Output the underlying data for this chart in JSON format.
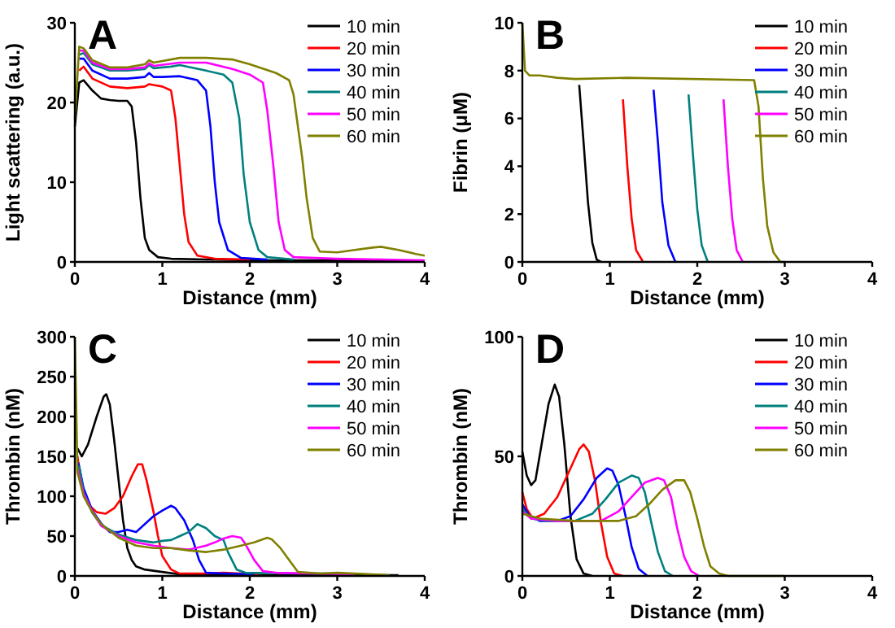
{
  "chart_data": [
    {
      "type": "line",
      "title": "A",
      "xlabel": "Distance (mm)",
      "ylabel": "Light scattering (a.u.)",
      "xlim": [
        0,
        4
      ],
      "xticks": [
        0,
        1,
        2,
        3,
        4
      ],
      "ylim": [
        0,
        30
      ],
      "yticks": [
        0,
        10,
        20,
        30
      ],
      "legend": "top right",
      "grid": false,
      "series": [
        {
          "name": "10 min",
          "color": "#000000",
          "x": [
            0,
            0.05,
            0.1,
            0.2,
            0.3,
            0.4,
            0.5,
            0.6,
            0.65,
            0.7,
            0.75,
            0.8,
            0.85,
            0.95,
            1.1,
            1.5,
            2,
            3,
            4
          ],
          "values": [
            17,
            22.5,
            22.8,
            21.5,
            20.5,
            20.3,
            20.2,
            20.2,
            19.5,
            15,
            8,
            3,
            1.5,
            0.6,
            0.4,
            0.3,
            0.2,
            0.2,
            0.1
          ]
        },
        {
          "name": "20 min",
          "color": "#ff0000",
          "x": [
            0.05,
            0.1,
            0.2,
            0.4,
            0.6,
            0.8,
            0.85,
            0.9,
            1.0,
            1.1,
            1.15,
            1.2,
            1.25,
            1.3,
            1.4,
            1.6,
            2
          ],
          "values": [
            24,
            24.5,
            23,
            22,
            21.8,
            22,
            22.3,
            22.2,
            22,
            21.5,
            18,
            12,
            6,
            2.5,
            0.8,
            0.4,
            0.3
          ]
        },
        {
          "name": "30 min",
          "color": "#0000ff",
          "x": [
            0.05,
            0.1,
            0.2,
            0.4,
            0.6,
            0.8,
            0.85,
            0.9,
            1.0,
            1.2,
            1.4,
            1.5,
            1.55,
            1.6,
            1.65,
            1.75,
            1.9,
            2.2
          ],
          "values": [
            25.5,
            25.5,
            24,
            23,
            23,
            23.2,
            23.7,
            23.2,
            23.2,
            23.3,
            22.8,
            21.5,
            17,
            10,
            5,
            1.5,
            0.5,
            0.3
          ]
        },
        {
          "name": "40 min",
          "color": "#008080",
          "x": [
            0.05,
            0.1,
            0.2,
            0.4,
            0.6,
            0.8,
            0.85,
            0.9,
            1.1,
            1.2,
            1.5,
            1.7,
            1.8,
            1.88,
            1.93,
            2.0,
            2.1,
            2.2,
            2.5
          ],
          "values": [
            26,
            26.2,
            24.8,
            24,
            24,
            24.2,
            24.7,
            24.3,
            24.5,
            24.7,
            24,
            23.5,
            22.5,
            18,
            11,
            5,
            1.5,
            0.6,
            0.3
          ]
        },
        {
          "name": "50 min",
          "color": "#ff00ff",
          "x": [
            0.05,
            0.1,
            0.2,
            0.4,
            0.6,
            0.8,
            0.85,
            0.9,
            1.2,
            1.5,
            1.8,
            2.0,
            2.15,
            2.2,
            2.27,
            2.33,
            2.4,
            2.5,
            3,
            4
          ],
          "values": [
            26.5,
            26.5,
            25,
            24.2,
            24.2,
            24.4,
            24.9,
            24.6,
            25,
            25,
            24.2,
            23.5,
            22.5,
            19,
            12,
            5,
            1.5,
            0.6,
            0.4,
            0.2
          ]
        },
        {
          "name": "60 min",
          "color": "#808000",
          "x": [
            0,
            0.05,
            0.1,
            0.2,
            0.4,
            0.6,
            0.8,
            0.85,
            0.9,
            1.2,
            1.5,
            1.8,
            2.0,
            2.3,
            2.45,
            2.5,
            2.6,
            2.65,
            2.72,
            2.8,
            3.0,
            3.2,
            3.4,
            3.5,
            3.7,
            3.9,
            4.0
          ],
          "values": [
            18,
            27,
            26.8,
            25.3,
            24.4,
            24.4,
            24.8,
            25.3,
            25,
            25.6,
            25.6,
            25.4,
            24.8,
            23.7,
            22.8,
            21,
            13,
            8,
            3,
            1.3,
            1.2,
            1.5,
            1.8,
            1.9,
            1.5,
            1.0,
            0.8
          ]
        }
      ]
    },
    {
      "type": "line",
      "title": "B",
      "xlabel": "Distance (mm)",
      "ylabel": "Fibrin (μM)",
      "xlim": [
        0,
        4
      ],
      "xticks": [
        0,
        1,
        2,
        3,
        4
      ],
      "ylim": [
        0,
        10
      ],
      "yticks": [
        0,
        2,
        4,
        6,
        8,
        10
      ],
      "legend": "top right",
      "grid": false,
      "series": [
        {
          "name": "10 min",
          "color": "#000000",
          "x": [
            0.65,
            0.7,
            0.75,
            0.8,
            0.85,
            0.9
          ],
          "values": [
            7.4,
            5,
            2.5,
            0.8,
            0.1,
            0
          ]
        },
        {
          "name": "20 min",
          "color": "#ff0000",
          "x": [
            1.15,
            1.2,
            1.25,
            1.3,
            1.38
          ],
          "values": [
            6.8,
            4,
            1.8,
            0.5,
            0
          ]
        },
        {
          "name": "30 min",
          "color": "#0000ff",
          "x": [
            1.5,
            1.55,
            1.6,
            1.67,
            1.75
          ],
          "values": [
            7.2,
            5,
            2.5,
            0.7,
            0
          ]
        },
        {
          "name": "40 min",
          "color": "#008080",
          "x": [
            1.9,
            1.95,
            2.0,
            2.05,
            2.12
          ],
          "values": [
            7.0,
            4.5,
            2.2,
            0.7,
            0
          ]
        },
        {
          "name": "50 min",
          "color": "#ff00ff",
          "x": [
            2.3,
            2.35,
            2.4,
            2.45,
            2.52
          ],
          "values": [
            6.8,
            4,
            1.8,
            0.5,
            0
          ]
        },
        {
          "name": "60 min",
          "color": "#808000",
          "x": [
            0,
            0.03,
            0.08,
            0.2,
            0.4,
            0.6,
            1.2,
            2.65,
            2.7,
            2.75,
            2.8,
            2.87,
            2.95,
            3
          ],
          "values": [
            10,
            8,
            7.8,
            7.8,
            7.7,
            7.65,
            7.7,
            7.6,
            6.5,
            3.5,
            1.5,
            0.4,
            0,
            0
          ]
        }
      ]
    },
    {
      "type": "line",
      "title": "C",
      "xlabel": "Distance (mm)",
      "ylabel": "Thrombin (nM)",
      "xlim": [
        0,
        4
      ],
      "xticks": [
        0,
        1,
        2,
        3,
        4
      ],
      "ylim": [
        0,
        300
      ],
      "yticks": [
        0,
        50,
        100,
        150,
        200,
        250,
        300
      ],
      "legend": "top right",
      "grid": false,
      "series": [
        {
          "name": "10 min",
          "color": "#000000",
          "x": [
            0.03,
            0.08,
            0.15,
            0.25,
            0.33,
            0.36,
            0.4,
            0.45,
            0.5,
            0.55,
            0.6,
            0.65,
            0.7,
            0.8,
            1.0,
            1.2,
            1.5,
            2,
            3,
            3.7
          ],
          "values": [
            160,
            150,
            165,
            200,
            225,
            228,
            215,
            170,
            120,
            70,
            35,
            20,
            12,
            8,
            5,
            2,
            1,
            1,
            1,
            1
          ]
        },
        {
          "name": "20 min",
          "color": "#ff0000",
          "x": [
            0.03,
            0.08,
            0.15,
            0.25,
            0.35,
            0.45,
            0.55,
            0.65,
            0.72,
            0.77,
            0.82,
            0.9,
            0.95,
            1.0,
            1.1,
            1.2,
            1.5,
            1.7,
            2.1
          ],
          "values": [
            150,
            110,
            90,
            80,
            78,
            85,
            100,
            125,
            140,
            140,
            120,
            80,
            50,
            25,
            8,
            3,
            3,
            4,
            2
          ]
        },
        {
          "name": "30 min",
          "color": "#0000ff",
          "x": [
            0.04,
            0.1,
            0.2,
            0.3,
            0.4,
            0.5,
            0.6,
            0.7,
            0.8,
            0.9,
            1.0,
            1.1,
            1.15,
            1.25,
            1.35,
            1.42,
            1.5,
            1.7,
            2.05
          ],
          "values": [
            142,
            110,
            82,
            66,
            55,
            55,
            58,
            55,
            65,
            75,
            82,
            88,
            85,
            70,
            45,
            20,
            4,
            3,
            2
          ]
        },
        {
          "name": "40 min",
          "color": "#008080",
          "x": [
            0.05,
            0.1,
            0.2,
            0.3,
            0.5,
            0.7,
            0.9,
            1.0,
            1.1,
            1.2,
            1.3,
            1.4,
            1.5,
            1.6,
            1.7,
            1.75,
            1.85,
            1.95,
            2.5,
            2.9
          ],
          "values": [
            138,
            105,
            79,
            64,
            52,
            45,
            42,
            44,
            45,
            50,
            55,
            65,
            60,
            50,
            45,
            30,
            8,
            4,
            3,
            3
          ]
        },
        {
          "name": "50 min",
          "color": "#ff00ff",
          "x": [
            0.03,
            0.1,
            0.2,
            0.3,
            0.5,
            0.7,
            0.9,
            1.1,
            1.3,
            1.5,
            1.6,
            1.7,
            1.8,
            1.9,
            1.95,
            2.05,
            2.15,
            2.3,
            3.2
          ],
          "values": [
            135,
            103,
            81,
            63,
            50,
            42,
            38,
            35,
            33,
            38,
            42,
            47,
            50,
            48,
            40,
            20,
            6,
            4,
            2
          ]
        },
        {
          "name": "60 min",
          "color": "#808000",
          "x": [
            0,
            0.03,
            0.1,
            0.2,
            0.3,
            0.5,
            0.7,
            0.9,
            1.1,
            1.3,
            1.5,
            1.7,
            1.9,
            2.05,
            2.2,
            2.25,
            2.35,
            2.45,
            2.55,
            2.8,
            3,
            3.6
          ],
          "values": [
            300,
            130,
            100,
            80,
            65,
            48,
            38,
            35,
            35,
            32,
            30,
            33,
            38,
            42,
            48,
            46,
            35,
            20,
            5,
            3,
            4,
            1
          ]
        }
      ]
    },
    {
      "type": "line",
      "title": "D",
      "xlabel": "Distance (mm)",
      "ylabel": "Thrombin (nM)",
      "xlim": [
        0,
        4
      ],
      "xticks": [
        0,
        1,
        2,
        3,
        4
      ],
      "ylim": [
        0,
        100
      ],
      "yticks": [
        0,
        50,
        100
      ],
      "legend": "top right",
      "grid": false,
      "series": [
        {
          "name": "10 min",
          "color": "#000000",
          "x": [
            0,
            0.05,
            0.1,
            0.15,
            0.22,
            0.3,
            0.37,
            0.42,
            0.48,
            0.55,
            0.62,
            0.7,
            0.8
          ],
          "values": [
            52,
            42,
            38,
            40,
            55,
            72,
            80,
            75,
            55,
            25,
            7,
            1,
            0
          ]
        },
        {
          "name": "20 min",
          "color": "#ff0000",
          "x": [
            0,
            0.05,
            0.12,
            0.25,
            0.4,
            0.55,
            0.65,
            0.7,
            0.76,
            0.83,
            0.9,
            0.97,
            1.05,
            1.15
          ],
          "values": [
            35,
            28,
            24,
            26,
            33,
            45,
            53,
            55,
            52,
            40,
            22,
            8,
            1,
            0
          ]
        },
        {
          "name": "30 min",
          "color": "#0000ff",
          "x": [
            0,
            0.08,
            0.2,
            0.4,
            0.55,
            0.7,
            0.85,
            0.97,
            1.03,
            1.1,
            1.18,
            1.25,
            1.33,
            1.43
          ],
          "values": [
            30,
            25,
            23,
            23,
            25,
            32,
            41,
            45,
            44,
            38,
            25,
            12,
            3,
            0
          ]
        },
        {
          "name": "40 min",
          "color": "#008080",
          "x": [
            0,
            0.1,
            0.3,
            0.6,
            0.8,
            0.95,
            1.1,
            1.25,
            1.33,
            1.4,
            1.47,
            1.55,
            1.63,
            1.72
          ],
          "values": [
            28,
            24,
            23,
            23,
            26,
            32,
            39,
            42,
            41,
            35,
            23,
            10,
            2,
            0
          ]
        },
        {
          "name": "50 min",
          "color": "#ff00ff",
          "x": [
            0,
            0.1,
            0.4,
            0.9,
            1.1,
            1.25,
            1.4,
            1.55,
            1.62,
            1.7,
            1.77,
            1.85,
            1.93,
            2.02
          ],
          "values": [
            27,
            24,
            23,
            23,
            27,
            33,
            39,
            41,
            40,
            33,
            20,
            8,
            2,
            0
          ]
        },
        {
          "name": "60 min",
          "color": "#808000",
          "x": [
            0,
            0.2,
            0.6,
            1.1,
            1.3,
            1.45,
            1.6,
            1.75,
            1.85,
            1.92,
            2.0,
            2.08,
            2.15,
            2.25,
            2.35,
            3
          ],
          "values": [
            26,
            24,
            23,
            23,
            25,
            30,
            36,
            40,
            40,
            35,
            24,
            12,
            4,
            1,
            0,
            0
          ]
        }
      ]
    }
  ]
}
